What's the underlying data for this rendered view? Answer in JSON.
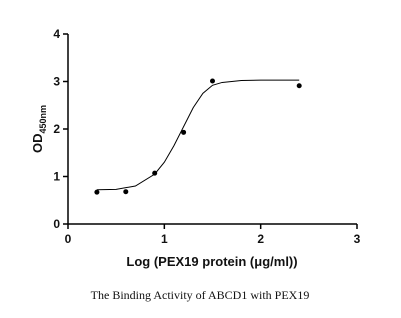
{
  "chart_data": {
    "type": "scatter",
    "caption": "The Binding Activity of ABCD1 with PEX19",
    "x_label": "Log (PEX19 protein (μg/ml))",
    "y_label": {
      "main": "OD",
      "subscript": "450nm"
    },
    "xlim": [
      0,
      3
    ],
    "xticks": [
      0,
      1,
      2,
      3
    ],
    "ylim": [
      0,
      4
    ],
    "yticks": [
      0,
      1,
      2,
      3,
      4
    ],
    "grid": false,
    "series": [
      {
        "style": "markers",
        "color": "#000000",
        "x": [
          0.3,
          0.6,
          0.9,
          1.2,
          1.5,
          2.4
        ],
        "values": [
          0.67,
          0.68,
          1.07,
          1.93,
          3.01,
          2.91
        ]
      },
      {
        "style": "line",
        "color": "#000000",
        "x": [
          0.3,
          0.5,
          0.7,
          0.9,
          1.0,
          1.1,
          1.2,
          1.3,
          1.4,
          1.5,
          1.6,
          1.8,
          2.0,
          2.4
        ],
        "values": [
          0.72,
          0.73,
          0.8,
          1.05,
          1.3,
          1.65,
          2.05,
          2.45,
          2.75,
          2.92,
          2.98,
          3.02,
          3.03,
          3.03
        ]
      }
    ]
  }
}
